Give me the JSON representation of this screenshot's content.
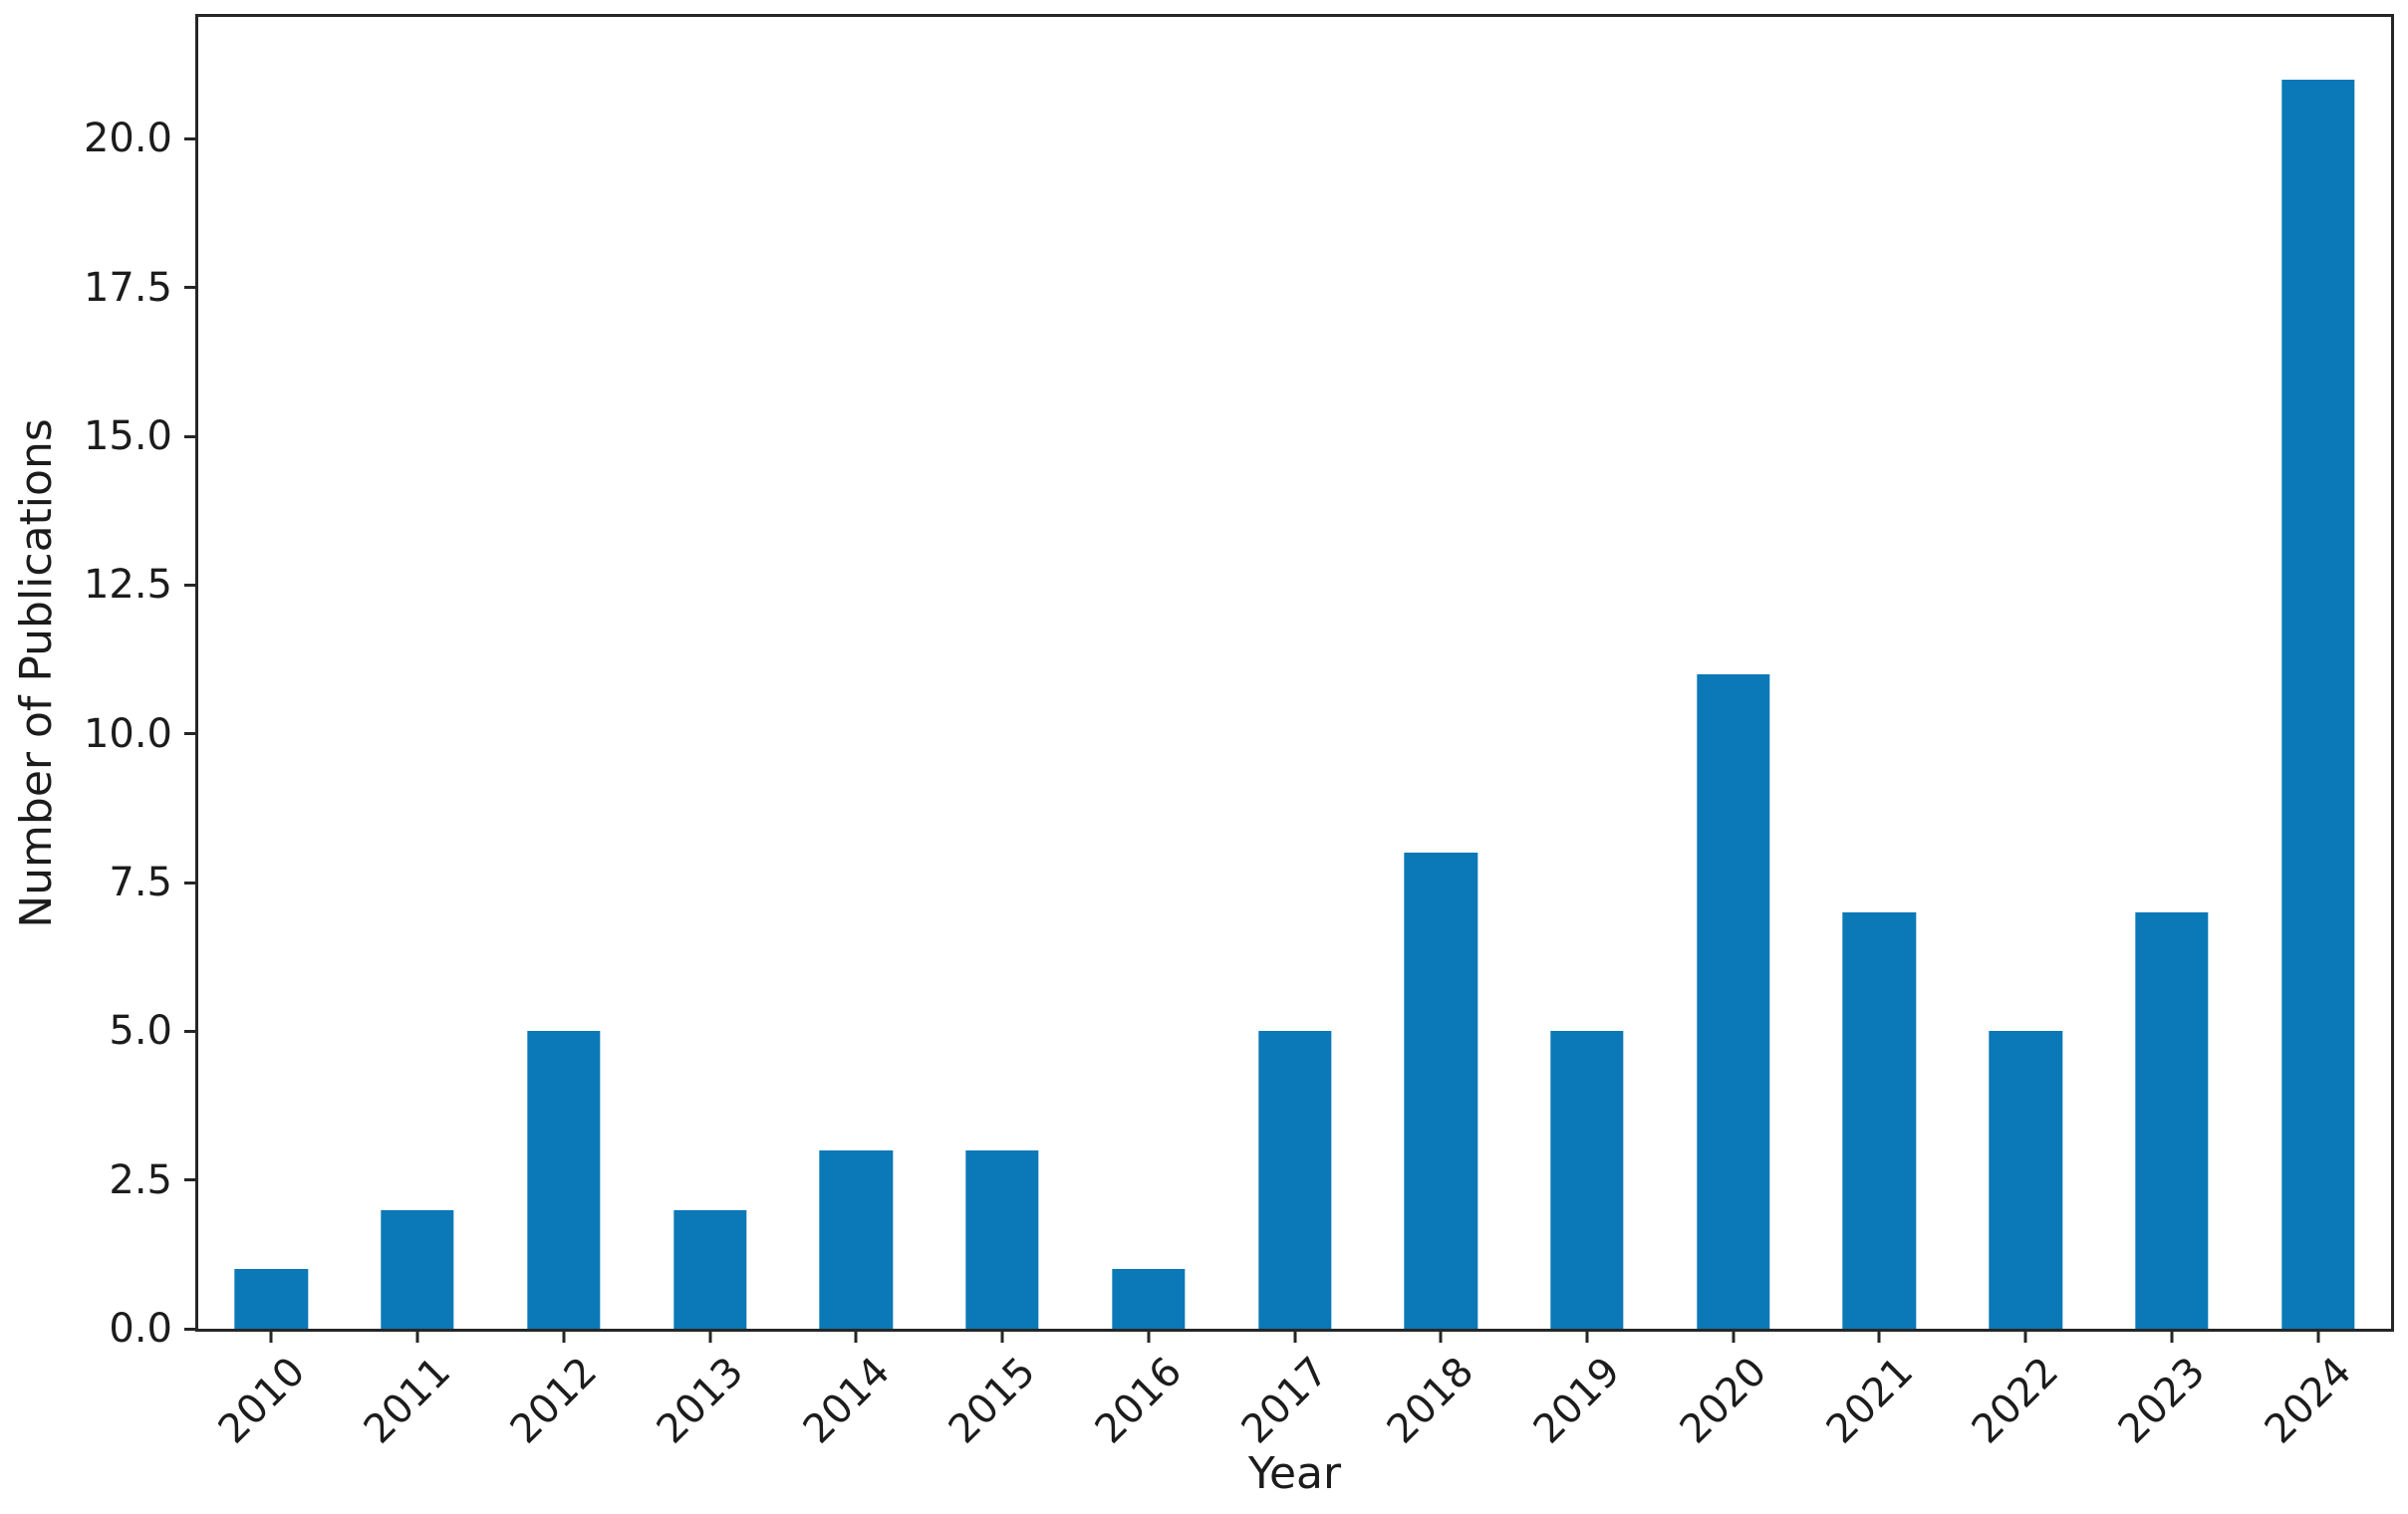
{
  "chart_data": {
    "type": "bar",
    "title": "",
    "xlabel": "Year",
    "ylabel": "Number of Publications",
    "categories": [
      "2010",
      "2011",
      "2012",
      "2013",
      "2014",
      "2015",
      "2016",
      "2017",
      "2018",
      "2019",
      "2020",
      "2021",
      "2022",
      "2023",
      "2024"
    ],
    "values": [
      1,
      2,
      5,
      2,
      3,
      3,
      1,
      5,
      8,
      5,
      11,
      7,
      5,
      7,
      21
    ],
    "ylim": [
      0,
      22.05
    ],
    "ytick_values": [
      0,
      2.5,
      5,
      7.5,
      10,
      12.5,
      15,
      17.5,
      20
    ],
    "ytick_labels": [
      "0.0",
      "2.5",
      "5.0",
      "7.5",
      "10.0",
      "12.5",
      "15.0",
      "17.5",
      "20.0"
    ],
    "x_tick_rotation_deg": 45,
    "grid": false,
    "legend": "none",
    "bar_width_fraction": 0.5,
    "colors": {
      "bar": "#0b78b8",
      "axis": "#262626",
      "text": "#1c1c1c",
      "background": "#ffffff"
    }
  }
}
